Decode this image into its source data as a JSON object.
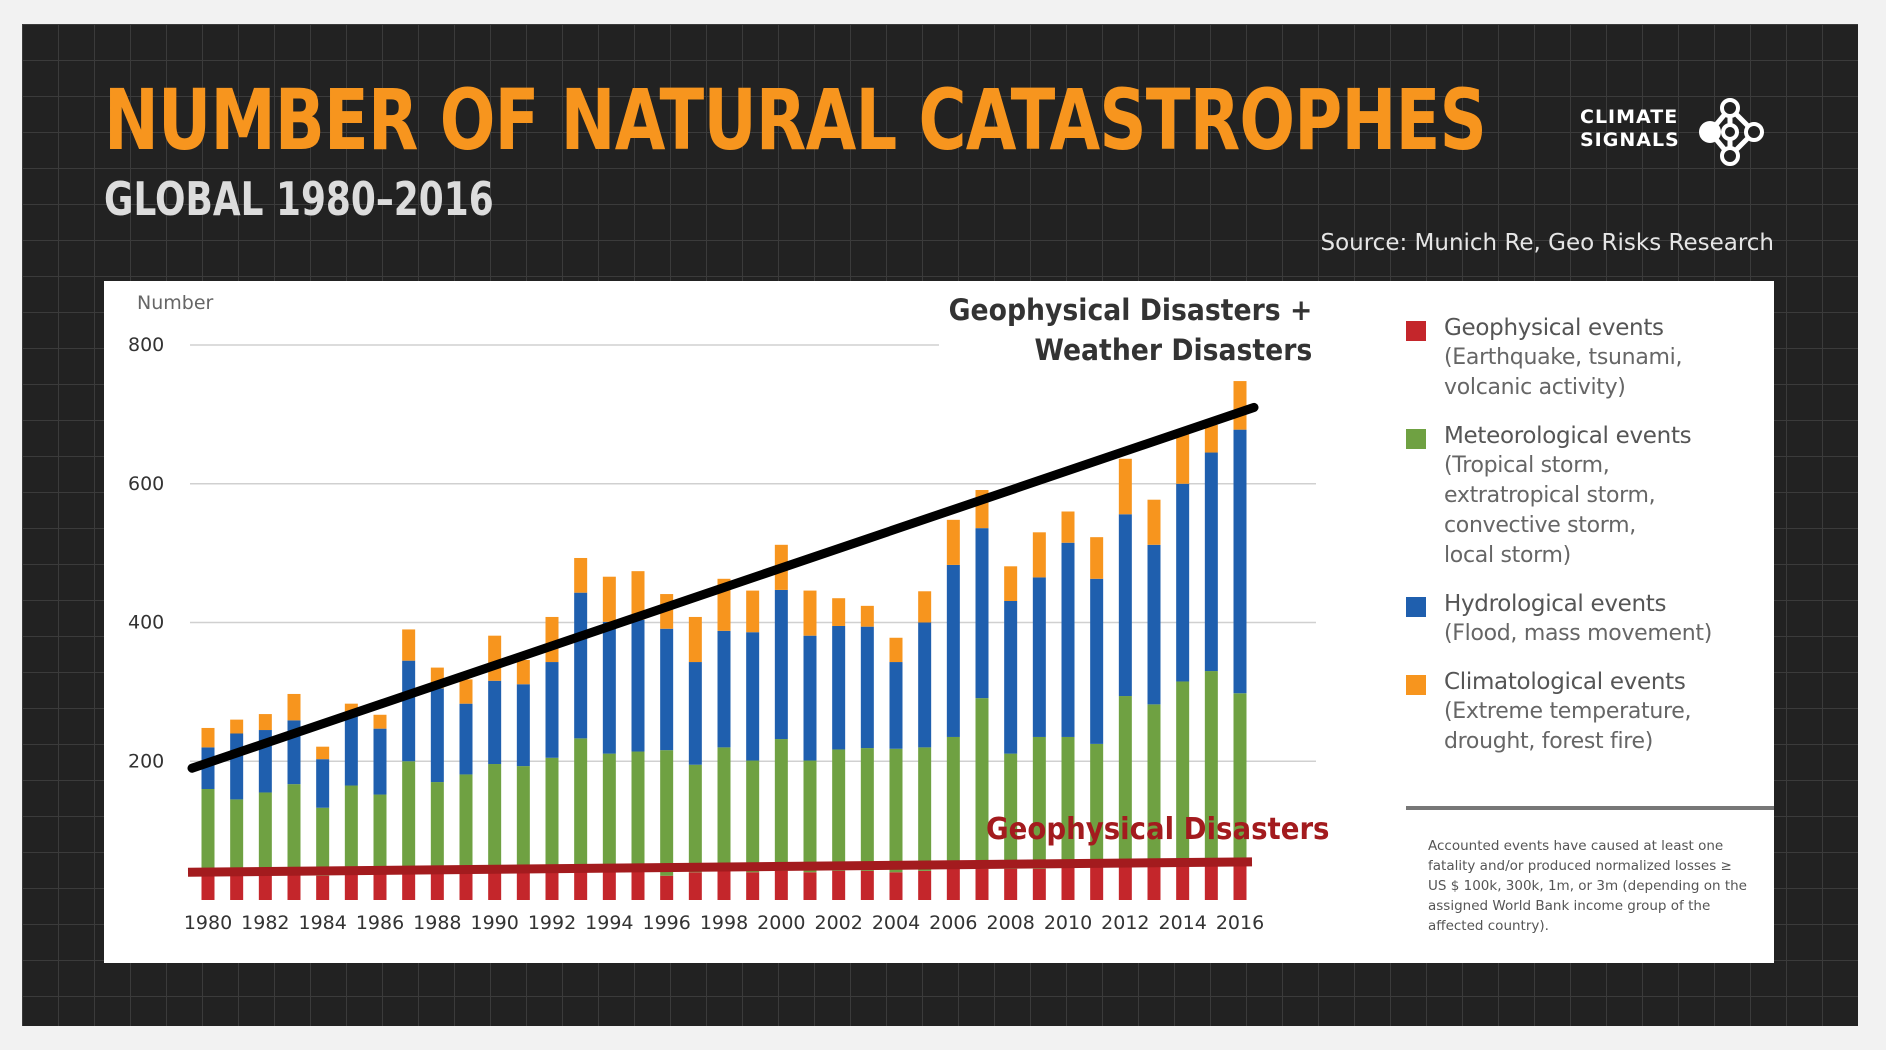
{
  "title": "NUMBER OF NATURAL CATASTROPHES",
  "subtitle": "GLOBAL 1980–2016",
  "source": "Source: Munich Re, Geo Risks Research",
  "logo": {
    "line1": "CLIMATE",
    "line2": "SIGNALS"
  },
  "colors": {
    "orange": "#f7951e",
    "geophysical": "#c4262b",
    "meteorological": "#6fa142",
    "hydrological": "#1f5fae",
    "climatological": "#f7951e"
  },
  "chart_data": {
    "type": "bar",
    "stacked": true,
    "ylabel": "Number",
    "ylim": [
      0,
      800
    ],
    "yticks": [
      200,
      400,
      600,
      800
    ],
    "x": [
      1980,
      1981,
      1982,
      1983,
      1984,
      1985,
      1986,
      1987,
      1988,
      1989,
      1990,
      1991,
      1992,
      1993,
      1994,
      1995,
      1996,
      1997,
      1998,
      1999,
      2000,
      2001,
      2002,
      2003,
      2004,
      2005,
      2006,
      2007,
      2008,
      2009,
      2010,
      2011,
      2012,
      2013,
      2014,
      2015,
      2016
    ],
    "xtick_labels": [
      "1980",
      "1982",
      "1984",
      "1986",
      "1988",
      "1990",
      "1992",
      "1994",
      "1996",
      "1998",
      "2000",
      "2002",
      "2004",
      "2006",
      "2008",
      "2010",
      "2012",
      "2014",
      "2016"
    ],
    "series": [
      {
        "name": "Geophysical events",
        "values": [
          40,
          42,
          40,
          42,
          35,
          38,
          40,
          42,
          38,
          40,
          45,
          40,
          42,
          45,
          40,
          42,
          35,
          40,
          42,
          40,
          42,
          40,
          42,
          42,
          40,
          42,
          45,
          45,
          45,
          45,
          50,
          48,
          48,
          48,
          50,
          50,
          50
        ]
      },
      {
        "name": "Meteorological events",
        "values": [
          120,
          103,
          115,
          125,
          98,
          127,
          112,
          158,
          132,
          141,
          151,
          153,
          163,
          188,
          171,
          172,
          181,
          155,
          178,
          161,
          190,
          161,
          175,
          177,
          178,
          178,
          190,
          246,
          166,
          190,
          185,
          177,
          246,
          234,
          265,
          280,
          248
        ]
      },
      {
        "name": "Hydrological events",
        "values": [
          60,
          95,
          90,
          92,
          70,
          100,
          95,
          145,
          135,
          102,
          120,
          118,
          138,
          210,
          190,
          190,
          175,
          148,
          168,
          185,
          215,
          180,
          178,
          175,
          125,
          180,
          248,
          245,
          220,
          230,
          280,
          238,
          262,
          230,
          285,
          315,
          380
        ]
      },
      {
        "name": "Climatological events",
        "values": [
          28,
          20,
          23,
          38,
          18,
          18,
          20,
          45,
          30,
          35,
          65,
          35,
          65,
          50,
          65,
          70,
          50,
          65,
          75,
          60,
          65,
          65,
          40,
          30,
          35,
          45,
          65,
          55,
          50,
          65,
          45,
          60,
          80,
          65,
          75,
          40,
          70
        ]
      }
    ],
    "trend_line": {
      "from": [
        1980,
        190
      ],
      "to": [
        2016,
        710
      ]
    },
    "geophysical_line": {
      "from": [
        1980,
        40
      ],
      "to": [
        2016,
        55
      ]
    },
    "annotations": [
      "Geophysical Disasters +",
      "Weather Disasters",
      "Geophysical Disasters"
    ],
    "legend_position": "right"
  },
  "legend": [
    {
      "name": "Geophysical events",
      "desc": [
        "(Earthquake, tsunami,",
        "volcanic activity)"
      ]
    },
    {
      "name": "Meteorological events",
      "desc": [
        "(Tropical storm,",
        "extratropical storm,",
        "convective storm,",
        "local storm)"
      ]
    },
    {
      "name": "Hydrological events",
      "desc": [
        "(Flood, mass movement)"
      ]
    },
    {
      "name": "Climatological events",
      "desc": [
        "(Extreme temperature,",
        "drought, forest fire)"
      ]
    }
  ],
  "footnote": "Accounted events have caused at least one fatality and/or produced normalized losses ≥ US $ 100k, 300k, 1m, or 3m (depending on the assigned World Bank income group of the affected country)."
}
